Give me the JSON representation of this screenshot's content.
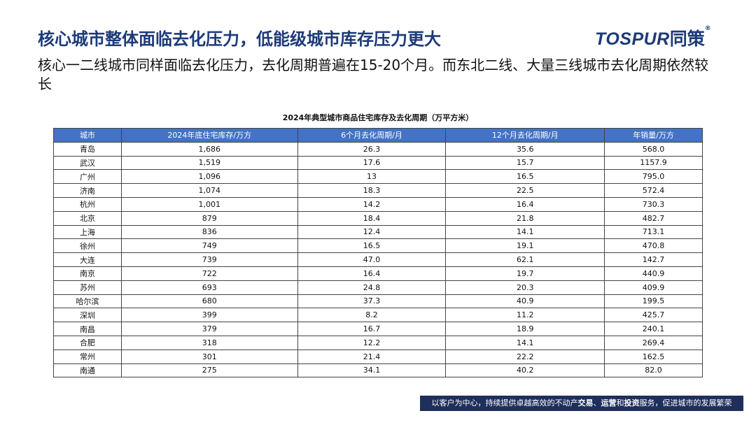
{
  "header": {
    "title": "核心城市整体面临去化压力，低能级城市库存压力更大",
    "logo": "TOSPUR",
    "logo_cn": "同策",
    "logo_mark": "®"
  },
  "subtitle": "核心一二线城市同样面临去化压力，去化周期普遍在15-20个月。而东北二线、大量三线城市去化周期依然较长",
  "table": {
    "title": "2024年典型城市商品住宅库存及去化周期（万平方米）",
    "columns": [
      "城市",
      "2024年底住宅库存/万方",
      "6个月去化周期/月",
      "12个月去化周期/月",
      "年销量/万方"
    ],
    "rows": [
      [
        "青岛",
        "1,686",
        "26.3",
        "35.6",
        "568.0"
      ],
      [
        "武汉",
        "1,519",
        "17.6",
        "15.7",
        "1157.9"
      ],
      [
        "广州",
        "1,096",
        "13",
        "16.5",
        "795.0"
      ],
      [
        "济南",
        "1,074",
        "18.3",
        "22.5",
        "572.4"
      ],
      [
        "杭州",
        "1,001",
        "14.2",
        "16.4",
        "730.3"
      ],
      [
        "北京",
        "879",
        "18.4",
        "21.8",
        "482.7"
      ],
      [
        "上海",
        "836",
        "12.4",
        "14.1",
        "713.1"
      ],
      [
        "徐州",
        "749",
        "16.5",
        "19.1",
        "470.8"
      ],
      [
        "大连",
        "739",
        "47.0",
        "62.1",
        "142.7"
      ],
      [
        "南京",
        "722",
        "16.4",
        "19.7",
        "440.9"
      ],
      [
        "苏州",
        "693",
        "24.8",
        "20.3",
        "409.9"
      ],
      [
        "哈尔滨",
        "680",
        "37.3",
        "40.9",
        "199.5"
      ],
      [
        "深圳",
        "399",
        "8.2",
        "11.2",
        "425.7"
      ],
      [
        "南昌",
        "379",
        "16.7",
        "18.9",
        "240.1"
      ],
      [
        "合肥",
        "318",
        "12.2",
        "14.1",
        "269.4"
      ],
      [
        "常州",
        "301",
        "21.4",
        "22.2",
        "162.5"
      ],
      [
        "南通",
        "275",
        "34.1",
        "40.2",
        "82.0"
      ]
    ]
  },
  "footer": {
    "segments": [
      {
        "text": "以客户为中心，持续提供卓越高效的不动产",
        "bold": false
      },
      {
        "text": "交易",
        "bold": true
      },
      {
        "text": "、",
        "bold": false
      },
      {
        "text": "运营",
        "bold": true
      },
      {
        "text": "和",
        "bold": false
      },
      {
        "text": "投资",
        "bold": true
      },
      {
        "text": "服务，促进城市的发展繁荣",
        "bold": false
      }
    ]
  }
}
